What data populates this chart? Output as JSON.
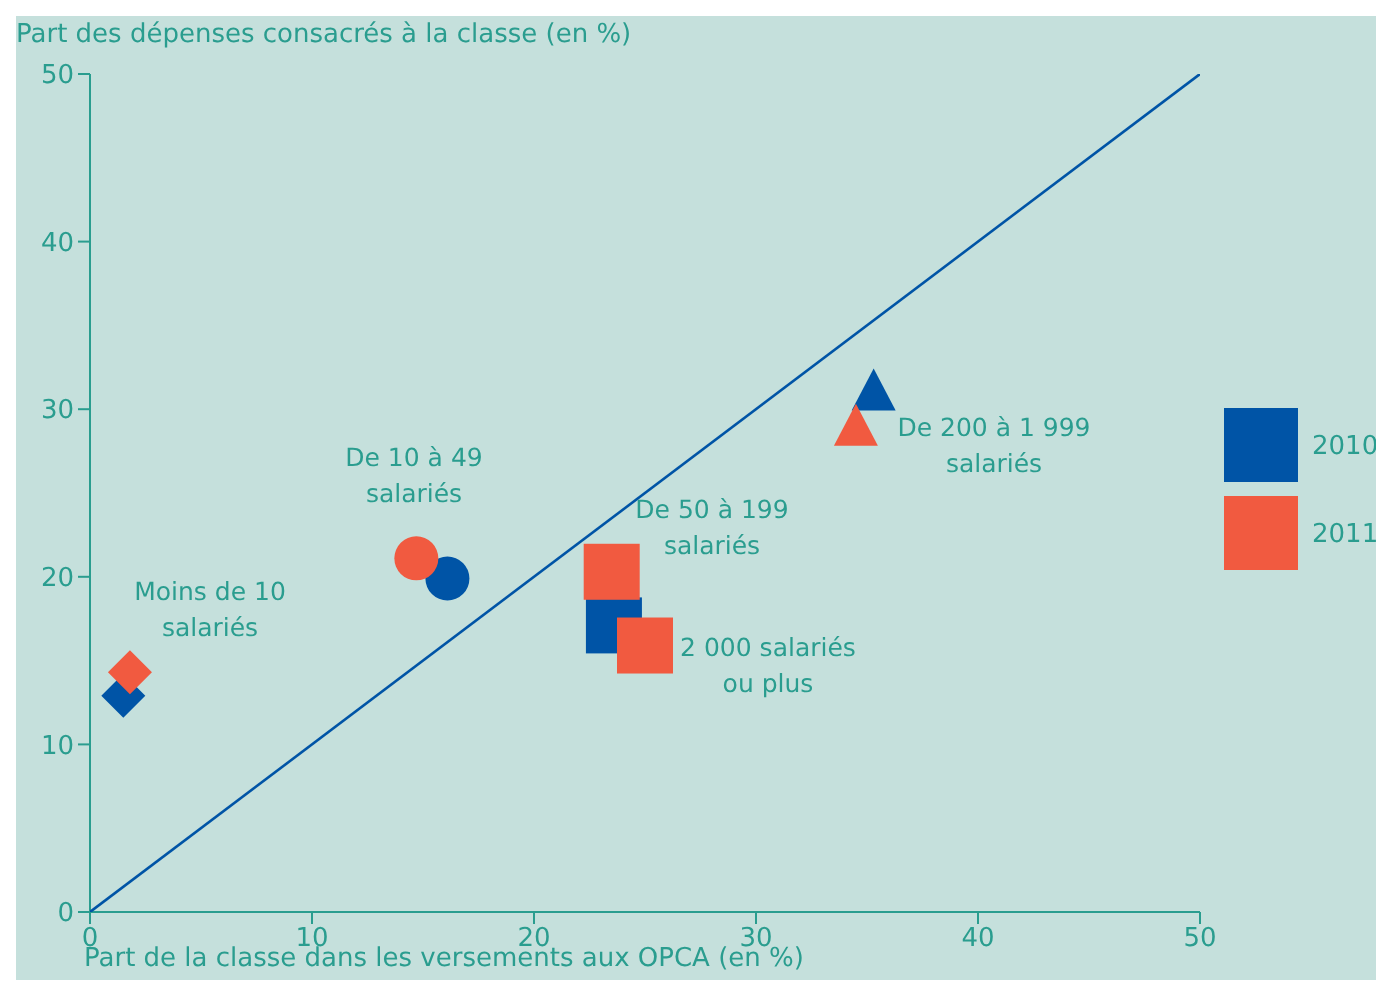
{
  "chart_data": {
    "type": "scatter",
    "title": "Part des dépenses consacrés à la classe (en %)",
    "xlabel": "Part de la classe dans les versements aux OPCA (en %)",
    "xlim": [
      0,
      50
    ],
    "ylim": [
      0,
      50
    ],
    "xticks": [
      0,
      10,
      20,
      30,
      40,
      50
    ],
    "yticks": [
      0,
      10,
      20,
      30,
      40,
      50
    ],
    "legend": "right",
    "series": [
      {
        "type": "line",
        "color": "#0054a6",
        "x": [
          0,
          50
        ],
        "values": [
          0,
          50
        ],
        "marker": "none"
      },
      {
        "color": "#0054a6",
        "marker": "diamond",
        "x": [
          1.5
        ],
        "values": [
          12.9
        ]
      },
      {
        "color": "#f15a40",
        "marker": "diamond",
        "x": [
          1.8
        ],
        "values": [
          14.3
        ]
      },
      {
        "color": "#0054a6",
        "marker": "circle",
        "x": [
          16.1
        ],
        "values": [
          19.9
        ]
      },
      {
        "color": "#f15a40",
        "marker": "circle",
        "x": [
          14.7
        ],
        "values": [
          21.1
        ]
      },
      {
        "name": "2010",
        "color": "#0054a6",
        "marker": "square",
        "x": [
          23.6
        ],
        "values": [
          17.1
        ]
      },
      {
        "name": "2011",
        "color": "#f15a40",
        "marker": "square",
        "x": [
          23.5,
          25.0
        ],
        "values": [
          20.3,
          15.9
        ]
      },
      {
        "color": "#0054a6",
        "marker": "triangle",
        "x": [
          35.3
        ],
        "values": [
          31.0
        ]
      },
      {
        "color": "#f15a40",
        "marker": "triangle",
        "x": [
          34.5
        ],
        "values": [
          28.9
        ]
      }
    ],
    "annotations": [
      "Moins de 10 salariés",
      "De 10 à 49 salariés",
      "De 50 à 199 salariés",
      "2 000 salariés ou plus",
      "De 200 à 1 999 salariés"
    ]
  }
}
